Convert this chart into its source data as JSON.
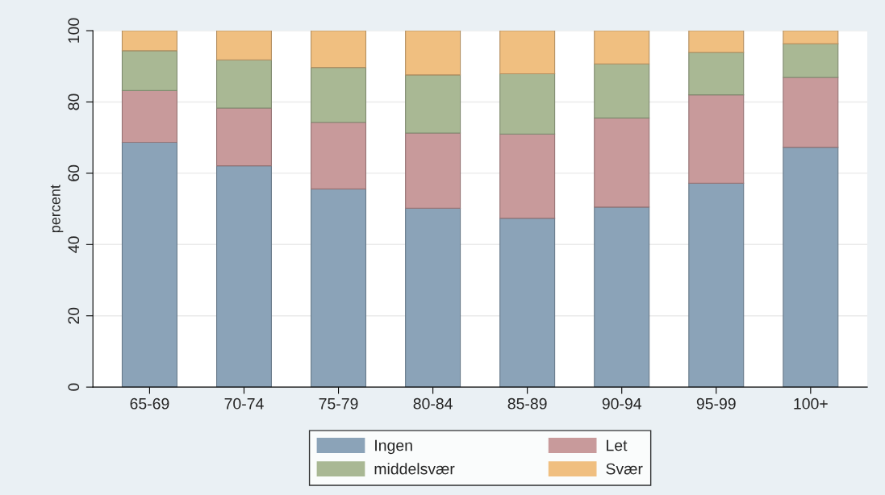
{
  "chart_data": {
    "type": "bar",
    "stacked": true,
    "ylabel": "percent",
    "categories": [
      "65-69",
      "70-74",
      "75-79",
      "80-84",
      "85-89",
      "90-94",
      "95-99",
      "100+"
    ],
    "series": [
      {
        "name": "Ingen",
        "color": "#8ba3b8",
        "values": [
          68.7,
          62.1,
          55.6,
          50.2,
          47.4,
          50.5,
          57.2,
          67.3
        ]
      },
      {
        "name": "Let",
        "color": "#c89a9b",
        "values": [
          14.5,
          16.2,
          18.7,
          21.1,
          23.6,
          25.0,
          24.8,
          19.6
        ]
      },
      {
        "name": "middelsvær",
        "color": "#a9b894",
        "values": [
          11.2,
          13.5,
          15.4,
          16.3,
          16.9,
          15.2,
          11.9,
          9.4
        ]
      },
      {
        "name": "Svær",
        "color": "#f0bf80",
        "values": [
          5.6,
          8.2,
          10.3,
          12.4,
          12.1,
          9.3,
          6.1,
          3.7
        ]
      }
    ],
    "ylim": [
      0,
      100
    ],
    "yticks": [
      0,
      20,
      40,
      60,
      80,
      100
    ],
    "grid": "y",
    "legend": "bottom"
  }
}
